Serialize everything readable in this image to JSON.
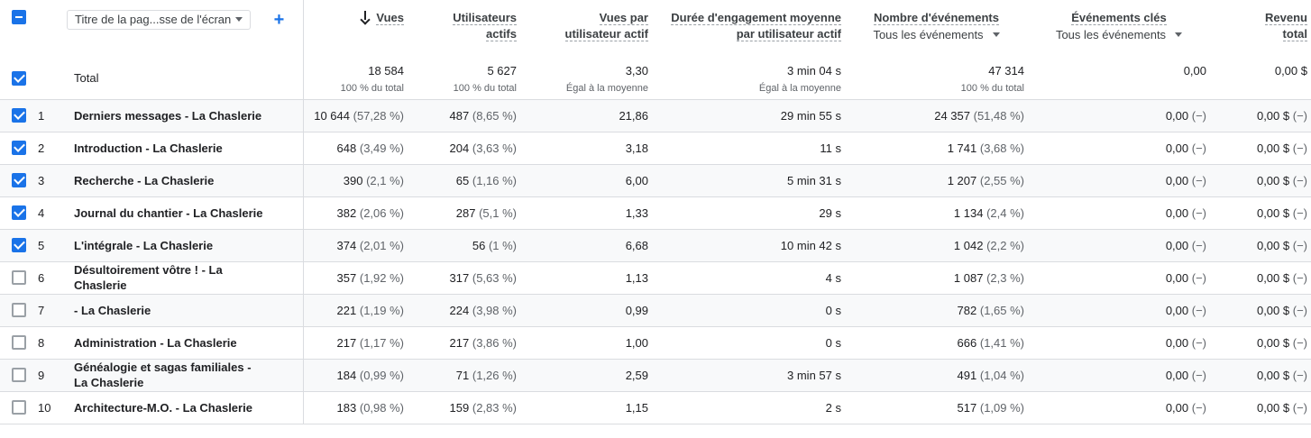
{
  "toolbar": {
    "dimension_select": "Titre de la pag...sse de l'écran",
    "add_dimension": "+"
  },
  "columns": {
    "views": {
      "label": "Vues",
      "sort": "descending"
    },
    "users": {
      "line1": "Utilisateurs",
      "line2": "actifs"
    },
    "vpu": {
      "line1": "Vues par",
      "line2": "utilisateur actif"
    },
    "duration": {
      "line1": "Durée d'engagement moyenne",
      "line2": "par utilisateur actif"
    },
    "events": {
      "label": "Nombre d'événements",
      "filter": "Tous les événements"
    },
    "key_events": {
      "label": "Événements clés",
      "filter": "Tous les événements"
    },
    "revenue": {
      "line1": "Revenu",
      "line2": "total"
    }
  },
  "totals": {
    "label": "Total",
    "views": "18 584",
    "views_pct": "100 % du total",
    "users": "5 627",
    "users_pct": "100 % du total",
    "vpu": "3,30",
    "vpu_pct": "Égal à la moyenne",
    "duration": "3 min 04 s",
    "duration_pct": "Égal à la moyenne",
    "events": "47 314",
    "events_pct": "100 % du total",
    "key_events": "0,00",
    "revenue": "0,00 $"
  },
  "rows": [
    {
      "num": "1",
      "title": "Derniers messages - La Chaslerie",
      "views": "10 644",
      "views_pct": "(57,28 %)",
      "users": "487",
      "users_pct": "(8,65 %)",
      "vpu": "21,86",
      "duration": "29 min 55 s",
      "events": "24 357",
      "events_pct": "(51,48 %)",
      "key_events": "0,00",
      "key_pct": "(−)",
      "revenue": "0,00 $",
      "revenue_pct": "(−)"
    },
    {
      "num": "2",
      "title": "Introduction - La Chaslerie",
      "views": "648",
      "views_pct": "(3,49 %)",
      "users": "204",
      "users_pct": "(3,63 %)",
      "vpu": "3,18",
      "duration": "11 s",
      "events": "1 741",
      "events_pct": "(3,68 %)",
      "key_events": "0,00",
      "key_pct": "(−)",
      "revenue": "0,00 $",
      "revenue_pct": "(−)"
    },
    {
      "num": "3",
      "title": "Recherche - La Chaslerie",
      "views": "390",
      "views_pct": "(2,1 %)",
      "users": "65",
      "users_pct": "(1,16 %)",
      "vpu": "6,00",
      "duration": "5 min 31 s",
      "events": "1 207",
      "events_pct": "(2,55 %)",
      "key_events": "0,00",
      "key_pct": "(−)",
      "revenue": "0,00 $",
      "revenue_pct": "(−)"
    },
    {
      "num": "4",
      "title": "Journal du chantier - La Chaslerie",
      "views": "382",
      "views_pct": "(2,06 %)",
      "users": "287",
      "users_pct": "(5,1 %)",
      "vpu": "1,33",
      "duration": "29 s",
      "events": "1 134",
      "events_pct": "(2,4 %)",
      "key_events": "0,00",
      "key_pct": "(−)",
      "revenue": "0,00 $",
      "revenue_pct": "(−)"
    },
    {
      "num": "5",
      "title": "L'intégrale - La Chaslerie",
      "views": "374",
      "views_pct": "(2,01 %)",
      "users": "56",
      "users_pct": "(1 %)",
      "vpu": "6,68",
      "duration": "10 min 42 s",
      "events": "1 042",
      "events_pct": "(2,2 %)",
      "key_events": "0,00",
      "key_pct": "(−)",
      "revenue": "0,00 $",
      "revenue_pct": "(−)"
    },
    {
      "num": "6",
      "title": "Désultoirement vôtre ! - La Chaslerie",
      "views": "357",
      "views_pct": "(1,92 %)",
      "users": "317",
      "users_pct": "(5,63 %)",
      "vpu": "1,13",
      "duration": "4 s",
      "events": "1 087",
      "events_pct": "(2,3 %)",
      "key_events": "0,00",
      "key_pct": "(−)",
      "revenue": "0,00 $",
      "revenue_pct": "(−)"
    },
    {
      "num": "7",
      "title": "- La Chaslerie",
      "views": "221",
      "views_pct": "(1,19 %)",
      "users": "224",
      "users_pct": "(3,98 %)",
      "vpu": "0,99",
      "duration": "0 s",
      "events": "782",
      "events_pct": "(1,65 %)",
      "key_events": "0,00",
      "key_pct": "(−)",
      "revenue": "0,00 $",
      "revenue_pct": "(−)"
    },
    {
      "num": "8",
      "title": "Administration - La Chaslerie",
      "views": "217",
      "views_pct": "(1,17 %)",
      "users": "217",
      "users_pct": "(3,86 %)",
      "vpu": "1,00",
      "duration": "0 s",
      "events": "666",
      "events_pct": "(1,41 %)",
      "key_events": "0,00",
      "key_pct": "(−)",
      "revenue": "0,00 $",
      "revenue_pct": "(−)"
    },
    {
      "num": "9",
      "title": "Généalogie et sagas familiales - La Chaslerie",
      "views": "184",
      "views_pct": "(0,99 %)",
      "users": "71",
      "users_pct": "(1,26 %)",
      "vpu": "2,59",
      "duration": "3 min 57 s",
      "events": "491",
      "events_pct": "(1,04 %)",
      "key_events": "0,00",
      "key_pct": "(−)",
      "revenue": "0,00 $",
      "revenue_pct": "(−)"
    },
    {
      "num": "10",
      "title": "Architecture-M.O. - La Chaslerie",
      "views": "183",
      "views_pct": "(0,98 %)",
      "users": "159",
      "users_pct": "(2,83 %)",
      "vpu": "1,15",
      "duration": "2 s",
      "events": "517",
      "events_pct": "(1,09 %)",
      "key_events": "0,00",
      "key_pct": "(−)",
      "revenue": "0,00 $",
      "revenue_pct": "(−)"
    }
  ],
  "row_checked": [
    true,
    true,
    true,
    true,
    true,
    false,
    false,
    false,
    false,
    false
  ],
  "colors": {
    "accent": "#1a73e8",
    "border": "#dadce0",
    "alt_row": "#f8f9fa"
  },
  "icons": {
    "sort": "arrow-down-icon",
    "dropdown": "caret-down-icon",
    "add": "plus-icon"
  }
}
